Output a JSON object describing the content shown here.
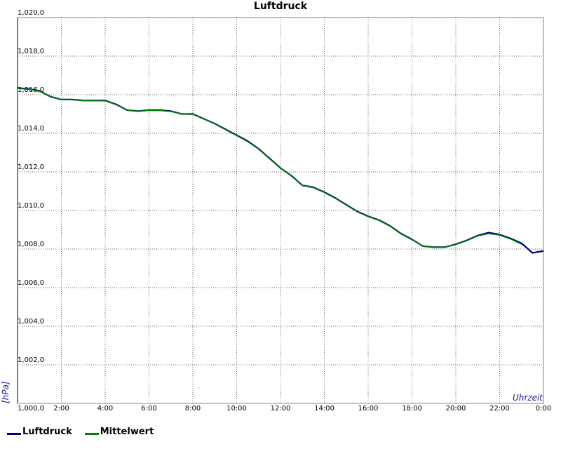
{
  "chart_data": {
    "type": "line",
    "title": "Luftdruck",
    "ylabel": "[hPa]",
    "xlabel": "Uhrzeit",
    "ylim": [
      1000.0,
      1020.0
    ],
    "xlim": [
      0,
      24
    ],
    "y_ticks": [
      {
        "value": 1000,
        "label": "1,000,0"
      },
      {
        "value": 1002,
        "label": "1,002,0"
      },
      {
        "value": 1004,
        "label": "1,004,0"
      },
      {
        "value": 1006,
        "label": "1,006,0"
      },
      {
        "value": 1008,
        "label": "1,008,0"
      },
      {
        "value": 1010,
        "label": "1,010,0"
      },
      {
        "value": 1012,
        "label": "1,012,0"
      },
      {
        "value": 1014,
        "label": "1,014,0"
      },
      {
        "value": 1016,
        "label": "1,016,0"
      },
      {
        "value": 1018,
        "label": "1,018,0"
      },
      {
        "value": 1020,
        "label": "1,020,0"
      }
    ],
    "x_ticks": [
      {
        "value": 2,
        "label": "2:00"
      },
      {
        "value": 4,
        "label": "4:00"
      },
      {
        "value": 6,
        "label": "6:00"
      },
      {
        "value": 8,
        "label": "8:00"
      },
      {
        "value": 10,
        "label": "10:00"
      },
      {
        "value": 12,
        "label": "12:00"
      },
      {
        "value": 14,
        "label": "14:00"
      },
      {
        "value": 16,
        "label": "16:00"
      },
      {
        "value": 18,
        "label": "18:00"
      },
      {
        "value": 20,
        "label": "20:00"
      },
      {
        "value": 22,
        "label": "22:00"
      },
      {
        "value": 24,
        "label": "0:00"
      }
    ],
    "grid": true,
    "legend_position": "bottom-left",
    "series": [
      {
        "name": "Luftdruck",
        "color": "#000080",
        "x": [
          0,
          0.5,
          1,
          1.5,
          2,
          2.5,
          3,
          3.5,
          4,
          4.5,
          5,
          5.5,
          6,
          6.5,
          7,
          7.5,
          8,
          8.5,
          9,
          9.5,
          10,
          10.5,
          11,
          11.5,
          12,
          12.5,
          13,
          13.5,
          14,
          14.5,
          15,
          15.5,
          16,
          16.5,
          17,
          17.5,
          18,
          18.5,
          19,
          19.5,
          20,
          20.5,
          21,
          21.5,
          22,
          22.5,
          23,
          23.5,
          24
        ],
        "values": [
          1016.35,
          1016.3,
          1016.2,
          1015.9,
          1015.75,
          1015.75,
          1015.7,
          1015.7,
          1015.7,
          1015.5,
          1015.2,
          1015.15,
          1015.2,
          1015.2,
          1015.15,
          1015.0,
          1015.0,
          1014.75,
          1014.5,
          1014.2,
          1013.9,
          1013.6,
          1013.2,
          1012.7,
          1012.2,
          1011.8,
          1011.3,
          1011.2,
          1010.95,
          1010.65,
          1010.3,
          1009.95,
          1009.7,
          1009.5,
          1009.2,
          1008.8,
          1008.5,
          1008.15,
          1008.1,
          1008.1,
          1008.25,
          1008.45,
          1008.7,
          1008.85,
          1008.75,
          1008.55,
          1008.3,
          1007.8,
          1007.9
        ]
      },
      {
        "name": "Mittelwert",
        "color": "#008000",
        "x": [
          0,
          0.5,
          1,
          1.5,
          2,
          2.5,
          3,
          3.5,
          4,
          4.5,
          5,
          5.5,
          6,
          6.5,
          7,
          7.5,
          8,
          8.5,
          9,
          9.5,
          10,
          10.5,
          11,
          11.5,
          12,
          12.5,
          13,
          13.5,
          14,
          14.5,
          15,
          15.5,
          16,
          16.5,
          17,
          17.5,
          18,
          18.5,
          19,
          19.5,
          20,
          20.5,
          21,
          21.5,
          22,
          22.5,
          23
        ],
        "values": [
          1016.33,
          1016.28,
          1016.18,
          1015.9,
          1015.75,
          1015.74,
          1015.7,
          1015.69,
          1015.68,
          1015.48,
          1015.2,
          1015.15,
          1015.18,
          1015.18,
          1015.13,
          1015.0,
          1014.98,
          1014.74,
          1014.49,
          1014.18,
          1013.88,
          1013.57,
          1013.18,
          1012.68,
          1012.2,
          1011.78,
          1011.3,
          1011.18,
          1010.93,
          1010.63,
          1010.28,
          1009.93,
          1009.68,
          1009.48,
          1009.18,
          1008.78,
          1008.48,
          1008.15,
          1008.1,
          1008.1,
          1008.23,
          1008.43,
          1008.68,
          1008.8,
          1008.72,
          1008.52,
          1008.25
        ]
      }
    ]
  }
}
